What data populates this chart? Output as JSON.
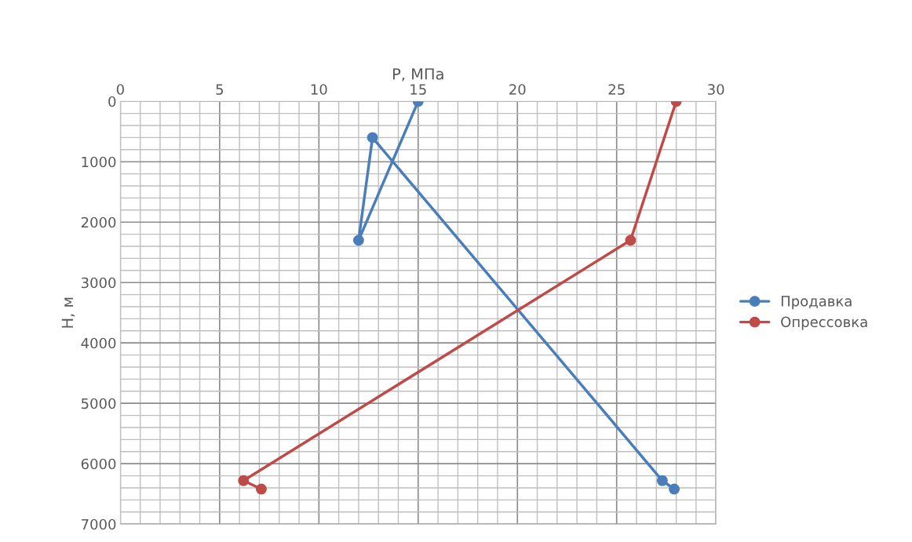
{
  "chart_data": {
    "type": "line",
    "xlabel": "P, МПа",
    "ylabel": "H, м",
    "xlim": [
      0,
      30
    ],
    "xticks": [
      0,
      5,
      10,
      15,
      20,
      25,
      30
    ],
    "ylim": [
      7000,
      0
    ],
    "yticks": [
      0,
      1000,
      2000,
      3000,
      4000,
      5000,
      6000,
      7000
    ],
    "grid": true,
    "legend": "right",
    "marker": "circle",
    "line_style": "solid",
    "series": [
      {
        "name": "Продавка",
        "color": "#4a7ebb",
        "x": [
          15,
          12.0,
          12.7,
          27.3,
          27.9
        ],
        "values": [
          0,
          2300,
          600,
          6280,
          6420
        ]
      },
      {
        "name": "Опрессовка",
        "color": "#be4b48",
        "x": [
          28.0,
          25.7,
          6.2,
          7.1
        ],
        "values": [
          0,
          2300,
          6280,
          6420
        ]
      }
    ]
  }
}
